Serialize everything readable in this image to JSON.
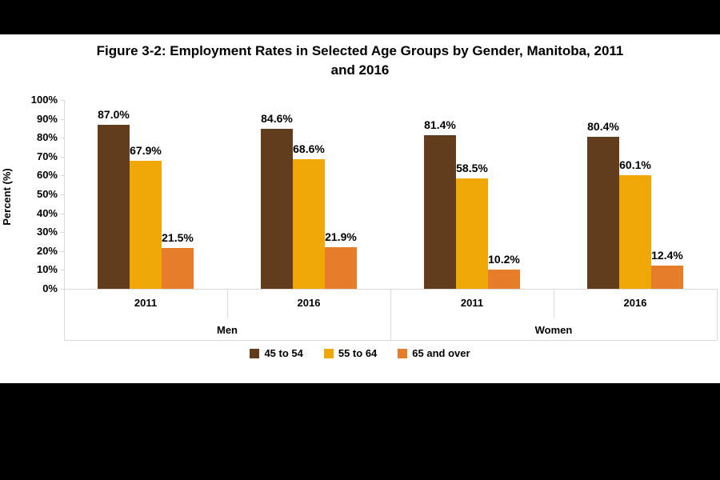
{
  "page": {
    "background_color": "#000000",
    "canvas_color": "#ffffff"
  },
  "title_lines": [
    "Figure 3-2: Employment Rates in Selected Age Groups by Gender, Manitoba, 2011",
    "and 2016"
  ],
  "chart_data": {
    "type": "bar",
    "title": "Figure 3-2: Employment Rates in Selected Age Groups by Gender, Manitoba, 2011 and 2016",
    "xlabel": "",
    "ylabel": "Percent (%)",
    "ylim": [
      0,
      100
    ],
    "ytick_step": 10,
    "ytick_labels": [
      "0%",
      "10%",
      "20%",
      "30%",
      "40%",
      "50%",
      "60%",
      "70%",
      "80%",
      "90%",
      "100%"
    ],
    "grid": false,
    "legend_position": "bottom",
    "axis_color": "#d9d9d9",
    "text_color": "#000000",
    "series": [
      {
        "name": "45 to 54",
        "color": "#613d1e"
      },
      {
        "name": "55 to 64",
        "color": "#f0a708"
      },
      {
        "name": "65 and over",
        "color": "#e57d2a"
      }
    ],
    "category_level1": [
      "Men",
      "Women"
    ],
    "category_level2": [
      "2011",
      "2016",
      "2011",
      "2016"
    ],
    "groups": [
      {
        "gender": "Men",
        "year": "2011",
        "values": [
          87.0,
          67.9,
          21.5
        ],
        "labels": [
          "87.0%",
          "67.9%",
          "21.5%"
        ]
      },
      {
        "gender": "Men",
        "year": "2016",
        "values": [
          84.6,
          68.6,
          21.9
        ],
        "labels": [
          "84.6%",
          "68.6%",
          "21.9%"
        ]
      },
      {
        "gender": "Women",
        "year": "2011",
        "values": [
          81.4,
          58.5,
          10.2
        ],
        "labels": [
          "81.4%",
          "58.5%",
          "10.2%"
        ]
      },
      {
        "gender": "Women",
        "year": "2016",
        "values": [
          80.4,
          60.1,
          12.4
        ],
        "labels": [
          "80.4%",
          "60.1%",
          "12.4%"
        ]
      }
    ]
  }
}
